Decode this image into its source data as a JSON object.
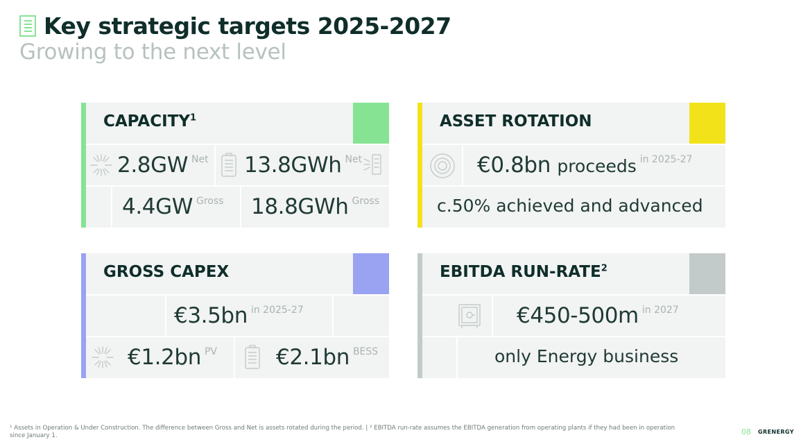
{
  "header": {
    "title": "Key strategic targets 2025-2027",
    "subtitle": "Growing to the next level"
  },
  "colors": {
    "green": "#86e394",
    "yellow": "#f2e21a",
    "purple": "#9aa3f1",
    "grey": "#c2cbc9",
    "panel": "#f2f3f3"
  },
  "capacity": {
    "title": "CAPACITY",
    "footnote_mark": "1",
    "pv_net": "2.8GW",
    "pv_net_tag": "Net",
    "bess_net": "13.8GWh",
    "bess_net_tag": "Net",
    "pv_gross": "4.4GW",
    "pv_gross_tag": "Gross",
    "bess_gross": "18.8GWh",
    "bess_gross_tag": "Gross",
    "icons": [
      "sun-icon",
      "battery-icon",
      "sun-icon"
    ]
  },
  "asset_rotation": {
    "title": "ASSET ROTATION",
    "value": "€0.8bn",
    "value_unit": "proceeds",
    "value_tag": "in 2025-27",
    "status": "c.50% achieved and advanced",
    "icons": [
      "target-icon"
    ]
  },
  "capex": {
    "title": "GROSS CAPEX",
    "total": "€3.5bn",
    "total_tag": "in 2025-27",
    "pv": "€1.2bn",
    "pv_tag": "PV",
    "bess": "€2.1bn",
    "bess_tag": "BESS",
    "icons": [
      "sun-icon",
      "battery-icon"
    ]
  },
  "ebitda": {
    "title": "EBITDA RUN-RATE",
    "footnote_mark": "2",
    "value": "€450-500m",
    "value_tag": "in 2027",
    "note": "only Energy business",
    "icons": [
      "safe-icon"
    ]
  },
  "footer": {
    "footnote": "¹ Assets in Operation & Under Construction. The difference between Gross and Net is assets rotated during the period.   |   ² EBITDA run-rate assumes the EBITDA generation from operating plants if they had been in operation since January 1.",
    "page_number": "08",
    "brand": "GRENERGY"
  }
}
